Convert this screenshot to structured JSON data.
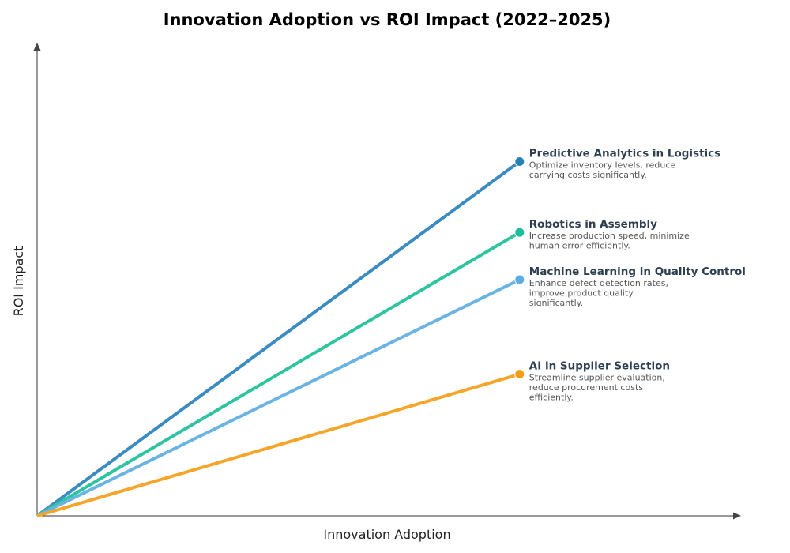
{
  "chart_data": {
    "type": "line",
    "title": "Innovation Adoption vs ROI Impact (2022–2025)",
    "xlabel": "Innovation Adoption",
    "ylabel": "ROI Impact",
    "xlim": [
      0,
      1.02
    ],
    "ylim": [
      0,
      1.0
    ],
    "grid": false,
    "series": [
      {
        "name": "Predictive Analytics in Logistics",
        "desc": [
          "Optimize inventory levels, reduce",
          "carrying costs significantly."
        ],
        "x": [
          0,
          0.7
        ],
        "y": [
          0,
          0.75
        ],
        "color": "#3a8bc2",
        "marker_color": "#2980b9"
      },
      {
        "name": "Robotics in Assembly",
        "desc": [
          "Increase production speed, minimize",
          "human error efficiently."
        ],
        "x": [
          0,
          0.7
        ],
        "y": [
          0,
          0.6
        ],
        "color": "#2ec4a0",
        "marker_color": "#1abc9c"
      },
      {
        "name": "Machine Learning in Quality Control",
        "desc": [
          "Enhance defect detection rates,",
          "improve product quality",
          "significantly."
        ],
        "x": [
          0,
          0.7
        ],
        "y": [
          0,
          0.5
        ],
        "color": "#6ab4e4",
        "marker_color": "#5dade2"
      },
      {
        "name": "AI in Supplier Selection",
        "desc": [
          "Streamline supplier evaluation,",
          "reduce procurement costs",
          "efficiently."
        ],
        "x": [
          0,
          0.7
        ],
        "y": [
          0,
          0.3
        ],
        "color": "#f5a52a",
        "marker_color": "#f39c12"
      }
    ]
  }
}
